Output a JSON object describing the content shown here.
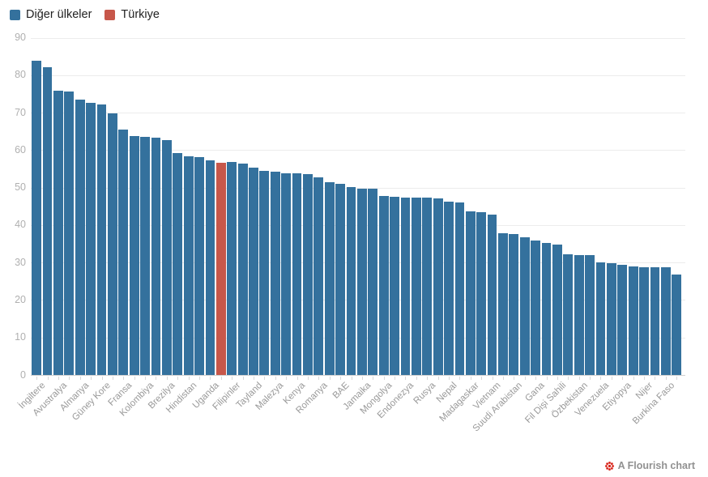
{
  "legend": {
    "items": [
      {
        "label": "Diğer ülkeler",
        "color": "#34719d"
      },
      {
        "label": "Türkiye",
        "color": "#c7574a"
      }
    ]
  },
  "footer": {
    "label": "A Flourish chart",
    "icon": "flourish-logo",
    "icon_color": "#d8261c"
  },
  "chart_data": {
    "type": "bar",
    "title": "",
    "xlabel": "",
    "ylabel": "",
    "ylim": [
      0,
      90
    ],
    "yticks": [
      90,
      80,
      70,
      60,
      50,
      40,
      30,
      20,
      10,
      0
    ],
    "grid": true,
    "legend_position": "top-left",
    "colors": {
      "other": "#34719d",
      "turkiye": "#c7574a"
    },
    "series": [
      "Diğer ülkeler",
      "Türkiye"
    ],
    "bars": [
      {
        "label": "İngiltere",
        "value": 84.0
      },
      {
        "label": "",
        "value": 82.2
      },
      {
        "label": "Avustralya",
        "value": 76.0
      },
      {
        "label": "",
        "value": 75.8
      },
      {
        "label": "Almanya",
        "value": 73.5
      },
      {
        "label": "",
        "value": 72.7
      },
      {
        "label": "Güney Kore",
        "value": 72.3
      },
      {
        "label": "",
        "value": 70.0
      },
      {
        "label": "Fransa",
        "value": 65.6
      },
      {
        "label": "",
        "value": 63.9
      },
      {
        "label": "Kolombiya",
        "value": 63.7
      },
      {
        "label": "",
        "value": 63.5
      },
      {
        "label": "Brezilya",
        "value": 62.8
      },
      {
        "label": "",
        "value": 59.4
      },
      {
        "label": "Hindistan",
        "value": 58.5
      },
      {
        "label": "",
        "value": 58.2
      },
      {
        "label": "Uganda",
        "value": 57.4
      },
      {
        "label": "",
        "value": 56.7,
        "turkiye": true
      },
      {
        "label": "Filipinler",
        "value": 56.9
      },
      {
        "label": "",
        "value": 56.5
      },
      {
        "label": "Tayland",
        "value": 55.4
      },
      {
        "label": "",
        "value": 54.5
      },
      {
        "label": "Malezya",
        "value": 54.4
      },
      {
        "label": "",
        "value": 54.0
      },
      {
        "label": "Kenya",
        "value": 53.9
      },
      {
        "label": "",
        "value": 53.7
      },
      {
        "label": "Romanya",
        "value": 52.9
      },
      {
        "label": "",
        "value": 51.6
      },
      {
        "label": "BAE",
        "value": 51.0
      },
      {
        "label": "",
        "value": 50.3
      },
      {
        "label": "Jamaika",
        "value": 49.8
      },
      {
        "label": "",
        "value": 49.7
      },
      {
        "label": "Mongolya",
        "value": 47.9
      },
      {
        "label": "",
        "value": 47.7
      },
      {
        "label": "Endonezya",
        "value": 47.5
      },
      {
        "label": "",
        "value": 47.4
      },
      {
        "label": "Rusya",
        "value": 47.4
      },
      {
        "label": "",
        "value": 47.3
      },
      {
        "label": "Nepal",
        "value": 46.3
      },
      {
        "label": "",
        "value": 46.1
      },
      {
        "label": "Madagaskar",
        "value": 43.7
      },
      {
        "label": "",
        "value": 43.5
      },
      {
        "label": "Vietnam",
        "value": 43.0
      },
      {
        "label": "",
        "value": 37.9
      },
      {
        "label": "Suudi Arabistan",
        "value": 37.7
      },
      {
        "label": "",
        "value": 36.9
      },
      {
        "label": "Gana",
        "value": 36.0
      },
      {
        "label": "",
        "value": 35.3
      },
      {
        "label": "Fil Dişi Sahili",
        "value": 34.9
      },
      {
        "label": "",
        "value": 32.2
      },
      {
        "label": "Özbekistan",
        "value": 32.0
      },
      {
        "label": "",
        "value": 32.0
      },
      {
        "label": "Venezuela",
        "value": 30.1
      },
      {
        "label": "",
        "value": 29.9
      },
      {
        "label": "Etiyopya",
        "value": 29.4
      },
      {
        "label": "",
        "value": 29.1
      },
      {
        "label": "Nijer",
        "value": 28.9
      },
      {
        "label": "",
        "value": 28.9
      },
      {
        "label": "Burkina Faso",
        "value": 28.9
      },
      {
        "label": "",
        "value": 26.8
      }
    ]
  }
}
